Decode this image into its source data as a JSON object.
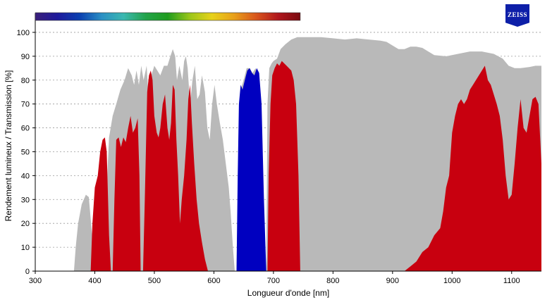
{
  "logo": {
    "text": "ZEISS",
    "color": "#0d1fa8"
  },
  "chart_data": {
    "type": "area",
    "title": "",
    "xlabel": "Longueur d'onde [nm]",
    "ylabel": "Rendement lumineux / Transmission [%]",
    "xlim": [
      300,
      1150
    ],
    "ylim": [
      0,
      105
    ],
    "xticks": [
      300,
      400,
      500,
      600,
      700,
      800,
      900,
      1000,
      1100
    ],
    "yticks": [
      0,
      10,
      20,
      30,
      40,
      50,
      60,
      70,
      80,
      90,
      100
    ],
    "grid": true,
    "colorbar": {
      "x_range": [
        300,
        745
      ],
      "stops": [
        "#3b1f7a",
        "#1e1a9c",
        "#0a3fb0",
        "#2a8fc4",
        "#3bb8b0",
        "#22a34a",
        "#1f9c1e",
        "#9bc61a",
        "#e7d21a",
        "#e8a01a",
        "#d8561c",
        "#b0161c",
        "#7a0a10"
      ]
    },
    "series": [
      {
        "color": "#b9b9b9",
        "points": [
          [
            300,
            0
          ],
          [
            365,
            0
          ],
          [
            368,
            10
          ],
          [
            372,
            20
          ],
          [
            378,
            28
          ],
          [
            385,
            32
          ],
          [
            390,
            31
          ],
          [
            393,
            22
          ],
          [
            398,
            8
          ],
          [
            403,
            0
          ],
          [
            413,
            0
          ],
          [
            418,
            25
          ],
          [
            424,
            56
          ],
          [
            430,
            65
          ],
          [
            436,
            70
          ],
          [
            443,
            76
          ],
          [
            450,
            80
          ],
          [
            456,
            85
          ],
          [
            462,
            82
          ],
          [
            466,
            78
          ],
          [
            470,
            84
          ],
          [
            474,
            78
          ],
          [
            478,
            86
          ],
          [
            482,
            80
          ],
          [
            487,
            86
          ],
          [
            491,
            70
          ],
          [
            495,
            82
          ],
          [
            500,
            86
          ],
          [
            505,
            84
          ],
          [
            510,
            82
          ],
          [
            516,
            86
          ],
          [
            522,
            86
          ],
          [
            527,
            90
          ],
          [
            531,
            93
          ],
          [
            535,
            90
          ],
          [
            538,
            80
          ],
          [
            542,
            86
          ],
          [
            547,
            80
          ],
          [
            550,
            88
          ],
          [
            553,
            90
          ],
          [
            556,
            85
          ],
          [
            560,
            70
          ],
          [
            564,
            80
          ],
          [
            568,
            86
          ],
          [
            572,
            72
          ],
          [
            576,
            74
          ],
          [
            580,
            82
          ],
          [
            585,
            75
          ],
          [
            589,
            60
          ],
          [
            593,
            55
          ],
          [
            597,
            70
          ],
          [
            601,
            78
          ],
          [
            605,
            70
          ],
          [
            610,
            62
          ],
          [
            615,
            55
          ],
          [
            620,
            45
          ],
          [
            625,
            35
          ],
          [
            628,
            25
          ],
          [
            632,
            10
          ],
          [
            635,
            0
          ],
          [
            638,
            0
          ],
          [
            642,
            60
          ],
          [
            645,
            76
          ],
          [
            650,
            80
          ],
          [
            655,
            85
          ],
          [
            660,
            85
          ],
          [
            665,
            83
          ],
          [
            670,
            85
          ],
          [
            675,
            80
          ],
          [
            678,
            20
          ],
          [
            682,
            0
          ],
          [
            688,
            0
          ],
          [
            690,
            70
          ],
          [
            693,
            85
          ],
          [
            697,
            87
          ],
          [
            700,
            88
          ],
          [
            706,
            89
          ],
          [
            712,
            93
          ],
          [
            720,
            95
          ],
          [
            730,
            97
          ],
          [
            740,
            98
          ],
          [
            760,
            98
          ],
          [
            780,
            98
          ],
          [
            800,
            97.5
          ],
          [
            820,
            97
          ],
          [
            840,
            97.5
          ],
          [
            860,
            97
          ],
          [
            880,
            96.5
          ],
          [
            890,
            96
          ],
          [
            900,
            94.5
          ],
          [
            910,
            93
          ],
          [
            920,
            93
          ],
          [
            930,
            94
          ],
          [
            940,
            94
          ],
          [
            950,
            93.5
          ],
          [
            960,
            92
          ],
          [
            970,
            90.5
          ],
          [
            990,
            90
          ],
          [
            1010,
            91
          ],
          [
            1030,
            92
          ],
          [
            1050,
            92
          ],
          [
            1070,
            91
          ],
          [
            1085,
            89
          ],
          [
            1095,
            86
          ],
          [
            1105,
            85
          ],
          [
            1115,
            85
          ],
          [
            1130,
            85.5
          ],
          [
            1140,
            86
          ],
          [
            1150,
            86
          ],
          [
            1150,
            0
          ]
        ]
      },
      {
        "color": "#c8000f",
        "points": [
          [
            393,
            0
          ],
          [
            396,
            20
          ],
          [
            400,
            35
          ],
          [
            405,
            40
          ],
          [
            409,
            50
          ],
          [
            413,
            55
          ],
          [
            417,
            56
          ],
          [
            420,
            50
          ],
          [
            424,
            15
          ],
          [
            427,
            0
          ],
          [
            430,
            0
          ],
          [
            433,
            30
          ],
          [
            436,
            55
          ],
          [
            440,
            56
          ],
          [
            444,
            52
          ],
          [
            448,
            56
          ],
          [
            452,
            54
          ],
          [
            456,
            60
          ],
          [
            460,
            65
          ],
          [
            464,
            58
          ],
          [
            468,
            60
          ],
          [
            472,
            64
          ],
          [
            475,
            40
          ],
          [
            477,
            0
          ],
          [
            481,
            0
          ],
          [
            484,
            30
          ],
          [
            488,
            75
          ],
          [
            491,
            82
          ],
          [
            494,
            84
          ],
          [
            497,
            80
          ],
          [
            500,
            65
          ],
          [
            504,
            58
          ],
          [
            507,
            56
          ],
          [
            510,
            60
          ],
          [
            514,
            70
          ],
          [
            518,
            74
          ],
          [
            522,
            60
          ],
          [
            525,
            55
          ],
          [
            528,
            62
          ],
          [
            531,
            78
          ],
          [
            534,
            76
          ],
          [
            537,
            55
          ],
          [
            540,
            40
          ],
          [
            543,
            20
          ],
          [
            546,
            30
          ],
          [
            550,
            40
          ],
          [
            554,
            55
          ],
          [
            557,
            72
          ],
          [
            560,
            78
          ],
          [
            563,
            62
          ],
          [
            567,
            45
          ],
          [
            571,
            30
          ],
          [
            575,
            20
          ],
          [
            580,
            12
          ],
          [
            585,
            5
          ],
          [
            590,
            0
          ],
          [
            640,
            0
          ],
          [
            700,
            0
          ],
          [
            920,
            0
          ],
          [
            930,
            2
          ],
          [
            940,
            4
          ],
          [
            950,
            8
          ],
          [
            960,
            10
          ],
          [
            970,
            15
          ],
          [
            980,
            18
          ],
          [
            985,
            25
          ],
          [
            990,
            35
          ],
          [
            995,
            40
          ],
          [
            1000,
            58
          ],
          [
            1005,
            65
          ],
          [
            1010,
            70
          ],
          [
            1015,
            72
          ],
          [
            1020,
            70
          ],
          [
            1025,
            72
          ],
          [
            1030,
            76
          ],
          [
            1035,
            78
          ],
          [
            1040,
            80
          ],
          [
            1045,
            82
          ],
          [
            1050,
            84
          ],
          [
            1055,
            86
          ],
          [
            1060,
            80
          ],
          [
            1065,
            78
          ],
          [
            1070,
            74
          ],
          [
            1075,
            70
          ],
          [
            1080,
            65
          ],
          [
            1085,
            55
          ],
          [
            1090,
            40
          ],
          [
            1095,
            30
          ],
          [
            1100,
            32
          ],
          [
            1105,
            45
          ],
          [
            1110,
            60
          ],
          [
            1115,
            72
          ],
          [
            1120,
            60
          ],
          [
            1125,
            58
          ],
          [
            1130,
            65
          ],
          [
            1135,
            72
          ],
          [
            1140,
            73
          ],
          [
            1145,
            70
          ],
          [
            1150,
            45
          ],
          [
            1150,
            0
          ]
        ]
      },
      {
        "color": "#0000c0",
        "points": [
          [
            638,
            0
          ],
          [
            640,
            40
          ],
          [
            642,
            70
          ],
          [
            645,
            78
          ],
          [
            648,
            76
          ],
          [
            652,
            80
          ],
          [
            656,
            84
          ],
          [
            660,
            85
          ],
          [
            664,
            83
          ],
          [
            668,
            82
          ],
          [
            672,
            85
          ],
          [
            676,
            83
          ],
          [
            680,
            70
          ],
          [
            684,
            30
          ],
          [
            688,
            0
          ]
        ]
      },
      {
        "color": "#c8000f",
        "points": [
          [
            690,
            0
          ],
          [
            692,
            40
          ],
          [
            695,
            70
          ],
          [
            698,
            82
          ],
          [
            702,
            85
          ],
          [
            706,
            87
          ],
          [
            710,
            86
          ],
          [
            714,
            88
          ],
          [
            718,
            87
          ],
          [
            722,
            86
          ],
          [
            726,
            85
          ],
          [
            730,
            84
          ],
          [
            734,
            80
          ],
          [
            738,
            70
          ],
          [
            742,
            40
          ],
          [
            745,
            0
          ]
        ]
      }
    ]
  }
}
